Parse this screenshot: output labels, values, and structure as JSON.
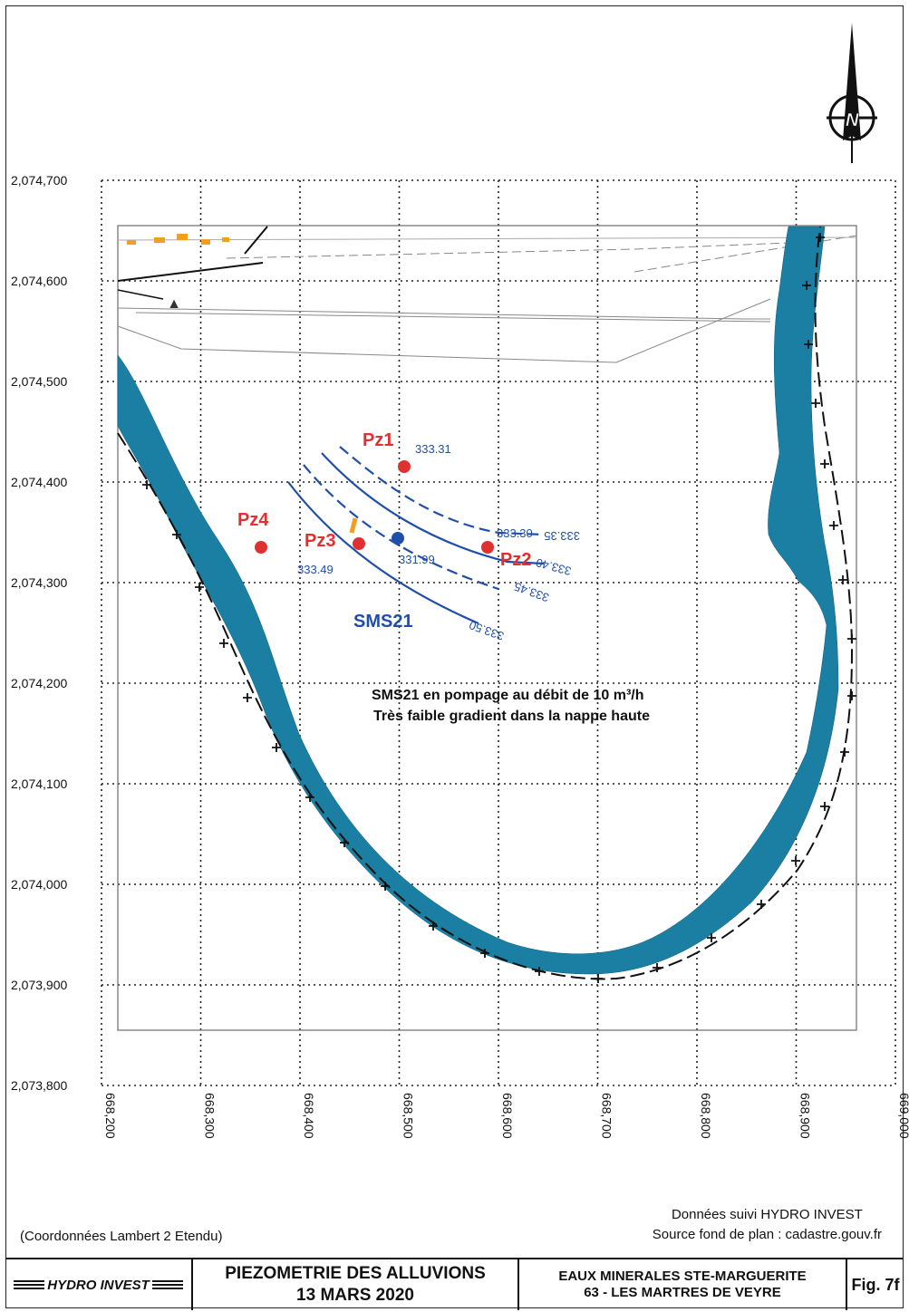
{
  "map": {
    "north_label": "N",
    "y_tick_labels": [
      "2,074,700",
      "2,074,600",
      "2,074,500",
      "2,074,400",
      "2,074,300",
      "2,074,200",
      "2,074,100",
      "2,074,000",
      "2,073,900",
      "2,073,800"
    ],
    "x_tick_labels": [
      "668,200",
      "668,300",
      "668,400",
      "668,500",
      "668,600",
      "668,700",
      "668,800",
      "668,900",
      "669,000"
    ],
    "piezometers": [
      {
        "label": "Pz1",
        "value": "333.31",
        "color": "#e03030"
      },
      {
        "label": "Pz2",
        "value": "333.30",
        "color": "#e03030"
      },
      {
        "label": "Pz3",
        "value": "333.49",
        "color": "#e03030"
      },
      {
        "label": "Pz4",
        "value": "",
        "color": "#e03030"
      }
    ],
    "well": {
      "label": "SMS21",
      "value": "331.99",
      "color": "#1f4fa8"
    },
    "contours": [
      {
        "label": "333.35",
        "style": "dashed"
      },
      {
        "label": "333.40",
        "style": "solid"
      },
      {
        "label": "333.45",
        "style": "dashed"
      },
      {
        "label": "333.50",
        "style": "solid"
      }
    ],
    "annotation_line1": "SMS21 en pompage au débit de 10 m³/h",
    "annotation_line2": "Très faible gradient dans la nappe haute",
    "colors": {
      "river": "#1b7fa3",
      "contour": "#1f4fa8",
      "piezometer": "#e03030",
      "well": "#1f4fa8",
      "orange": "#f0a020"
    }
  },
  "footer": {
    "coords_note": "(Coordonnées Lambert 2 Etendu)",
    "data_source": "Données suivi HYDRO INVEST",
    "plan_source": "Source fond de plan : cadastre.gouv.fr"
  },
  "title_block": {
    "logo_text": "HYDRO INVEST",
    "title_line1": "PIEZOMETRIE DES ALLUVIONS",
    "title_line2": "13 MARS 2020",
    "site_line1": "EAUX MINERALES STE-MARGUERITE",
    "site_line2": "63 - LES MARTRES DE VEYRE",
    "fig_label": "Fig. 7f"
  }
}
